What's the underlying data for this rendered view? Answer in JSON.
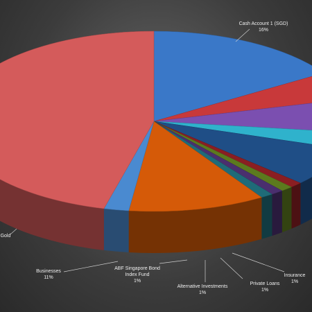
{
  "chart_data": {
    "type": "pie3d",
    "categories": [
      "Cash Account 1 (SGD)",
      null,
      null,
      null,
      null,
      "Insurance",
      "Private Loans",
      "Alternative Investments",
      "ABF Singapore Bond Index Fund",
      "Businesses",
      "Gold",
      null
    ],
    "values": [
      16,
      5,
      6,
      3,
      7,
      1,
      1,
      1,
      1,
      11,
      2,
      46
    ],
    "value_labels": [
      "16%",
      null,
      null,
      null,
      null,
      "1%",
      "1%",
      "1%",
      "1%",
      "11%",
      null,
      null
    ],
    "colors": [
      "#3a78c8",
      "#c8393a",
      "#7b4fb0",
      "#2fb2cc",
      "#1f4e86",
      "#8a1e22",
      "#5c7a1e",
      "#4a2f6e",
      "#1f6b78",
      "#d55a08",
      "#4a8ad0",
      "#d45b5b"
    ]
  }
}
